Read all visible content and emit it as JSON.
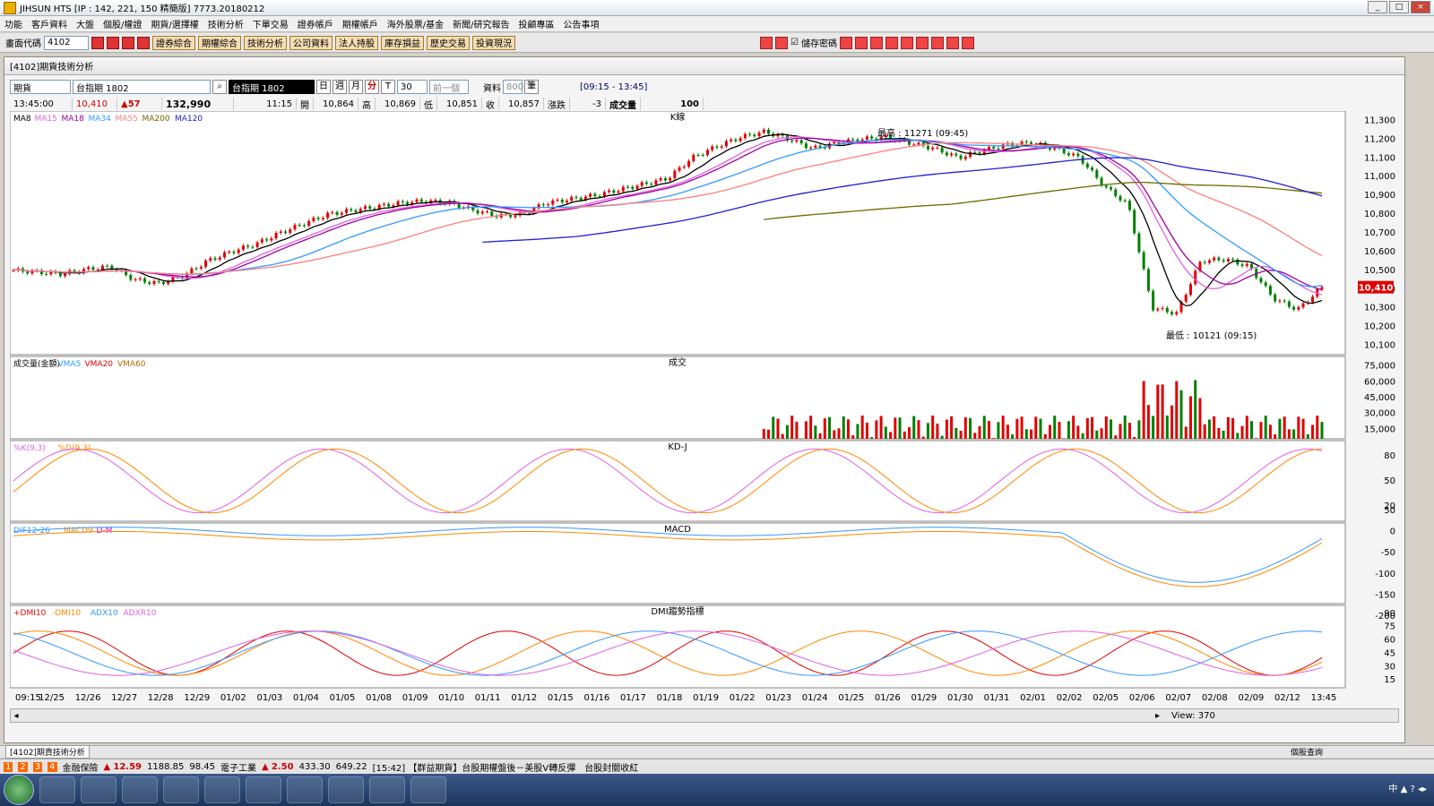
{
  "window": {
    "title": "JIHSUN HTS      [IP : 142, 221, 150 精簡版] 7773.20180212"
  },
  "menu": [
    "功能",
    "客戶資料",
    "大盤",
    "個股/權證",
    "期貨/選擇權",
    "技術分析",
    "下單交易",
    "證券帳戶",
    "期權帳戶",
    "海外股票/基金",
    "新聞/研究報告",
    "投顧專區",
    "公告事項"
  ],
  "toolbar": {
    "code_label": "畫面代碼",
    "code_value": "4102",
    "buttons": [
      "證券綜合",
      "期權綜合",
      "技術分析",
      "公司資料",
      "法人持股",
      "庫存損益",
      "歷史交易",
      "投資現況"
    ],
    "save_pw_label": "儲存密碼"
  },
  "panel": {
    "title": "[4102]期貨技術分析",
    "market": "期貨",
    "contract": "台指期 1802",
    "contract_display": "台指期 1802",
    "periods": [
      "日",
      "週",
      "月",
      "分",
      "T"
    ],
    "interval": "30",
    "prev": "前一個",
    "data_label": "資料",
    "data_count": "800",
    "unit": "筆",
    "session": "[09:15 - 13:45]",
    "info": {
      "time": "13:45:00",
      "last": "10,410",
      "change": "57",
      "volume_total": "132,990",
      "bar_time": "11:15",
      "open_label": "開",
      "open": "10,864",
      "high_label": "高",
      "high": "10,869",
      "low_label": "低",
      "low": "10,851",
      "close_label": "收",
      "close": "10,857",
      "chg_label": "漲跌",
      "chg": "-3",
      "vol_label": "成交量",
      "vol": "100"
    }
  },
  "chart_data": [
    {
      "type": "candlestick",
      "title": "K線",
      "legend": [
        "MA8",
        "MA15",
        "MA18",
        "MA34",
        "MA55",
        "MA200",
        "MA120"
      ],
      "ylim": [
        10050,
        11350
      ],
      "yticks": [
        10100,
        10200,
        10300,
        10400,
        10500,
        10600,
        10700,
        10800,
        10900,
        11000,
        11100,
        11200,
        11300
      ],
      "annotations": [
        {
          "text": "最高 : 11271 (09:45)"
        },
        {
          "text": "最低 : 10121 (09:15)"
        }
      ],
      "last_price": "10,410",
      "x_labels": [
        "09:15",
        "12/25",
        "12/26",
        "12/27",
        "12/28",
        "12/29",
        "01/02",
        "01/03",
        "01/04",
        "01/05",
        "01/08",
        "01/09",
        "01/10",
        "01/11",
        "01/12",
        "01/15",
        "01/16",
        "01/17",
        "01/18",
        "01/19",
        "01/22",
        "01/23",
        "01/24",
        "01/25",
        "01/26",
        "01/29",
        "01/30",
        "01/31",
        "02/01",
        "02/02",
        "02/05",
        "02/06",
        "02/07",
        "02/08",
        "02/09",
        "02/12",
        "13:45"
      ],
      "close_path": [
        10500,
        10490,
        10480,
        10505,
        10520,
        10450,
        10430,
        10470,
        10550,
        10600,
        10640,
        10700,
        10750,
        10800,
        10820,
        10840,
        10860,
        10870,
        10860,
        10820,
        10790,
        10800,
        10860,
        10880,
        10900,
        10930,
        10960,
        10990,
        11100,
        11160,
        11210,
        11240,
        11200,
        11150,
        11180,
        11200,
        11210,
        11180,
        11150,
        11100,
        11140,
        11170,
        11180,
        11150,
        11100,
        10950,
        10850,
        10300,
        10270,
        10550,
        10560,
        10520,
        10350,
        10290,
        10410
      ]
    },
    {
      "type": "bar",
      "title": "成交",
      "legend": [
        "成交量(金額)",
        "VMA5",
        "VMA20",
        "VMA60"
      ],
      "yticks": [
        15000,
        30000,
        45000,
        60000,
        75000
      ]
    },
    {
      "type": "line",
      "title": "KD-J",
      "legend": [
        "%K(9,3)",
        "%D(9,3)"
      ],
      "yticks": [
        20,
        50,
        80
      ]
    },
    {
      "type": "line",
      "title": "MACD",
      "legend": [
        "DIF12-26",
        "MACD9",
        "D-M"
      ],
      "yticks": [
        50,
        0,
        -50,
        -100,
        -150,
        -200
      ]
    },
    {
      "type": "line",
      "title": "DMI趨勢指標",
      "legend": [
        "+DMI10",
        "-DMI10",
        "ADX10",
        "ADXR10"
      ],
      "yticks": [
        15,
        30,
        45,
        60,
        75,
        90
      ]
    }
  ],
  "view": {
    "label": "View: 370"
  },
  "tabs": {
    "active": "[4102]期貨技術分析",
    "right": "個股查詢"
  },
  "status": {
    "item1": "金融保險",
    "v1a": "12.59",
    "v1b": "1188.85",
    "v1c": "98.45",
    "item2": "電子工業",
    "v2a": "2.50",
    "v2b": "433.30",
    "v2c": "649.22",
    "news": "[15:42] 【群益期貨】台股期權盤後－美股V轉反彈　台股封關收紅"
  }
}
